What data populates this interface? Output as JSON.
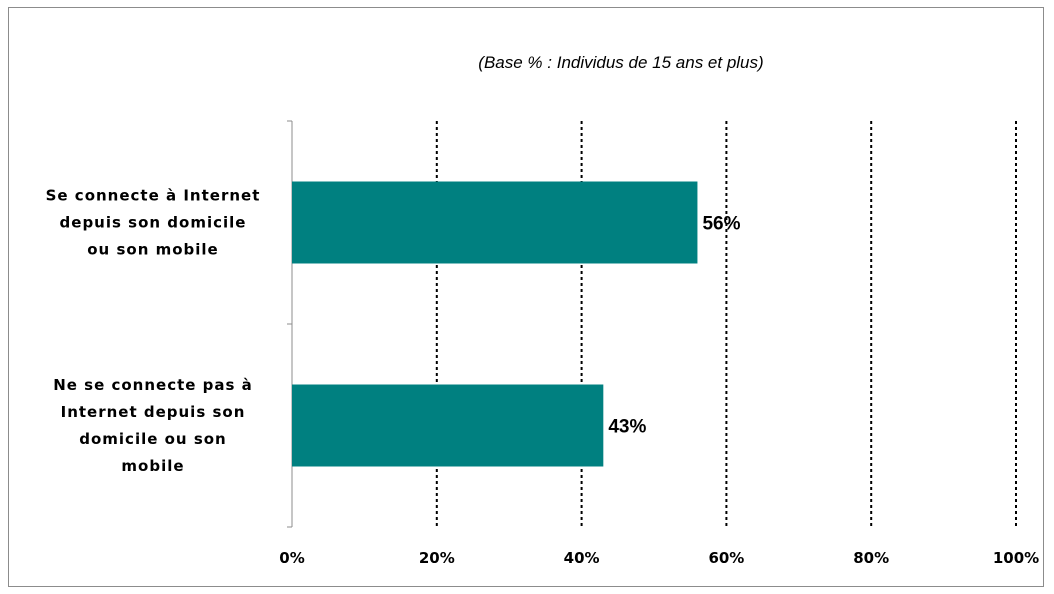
{
  "chart_data": {
    "type": "bar",
    "orientation": "horizontal",
    "title": "",
    "subtitle": "(Base % : Individus de 15 ans et plus)",
    "xlabel": "",
    "ylabel": "",
    "xlim": [
      0,
      100
    ],
    "x_ticks": [
      "0%",
      "20%",
      "40%",
      "60%",
      "80%",
      "100%"
    ],
    "x_tick_values": [
      0,
      20,
      40,
      60,
      80,
      100
    ],
    "grid": "vertical dotted",
    "legend": "none",
    "bar_color": "#008080",
    "categories": [
      [
        "Se connecte à Internet",
        "depuis son domicile",
        "ou son mobile"
      ],
      [
        "Ne se connecte pas à",
        "Internet depuis son",
        "domicile ou son",
        "mobile"
      ]
    ],
    "values": [
      56,
      43
    ],
    "data_labels": [
      "56%",
      "43%"
    ]
  }
}
